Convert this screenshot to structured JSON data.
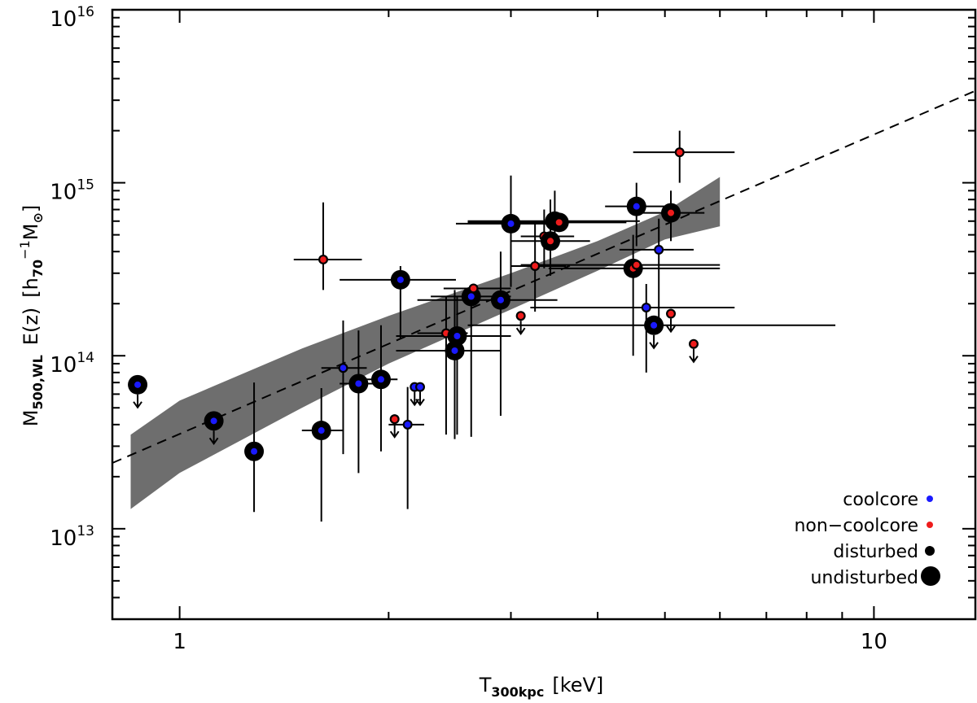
{
  "chart_data": {
    "type": "scatter",
    "xscale": "log",
    "yscale": "log",
    "xlim": [
      0.8,
      14.0
    ],
    "ylim": [
      3000000000000.0,
      1e+16
    ],
    "xlabel": {
      "base": "T",
      "sub": "300kpc",
      "rest": "[keV]"
    },
    "ylabel": {
      "base": "M",
      "sub": "500,WL",
      "mid": "E(z)",
      "bracket_open": "[",
      "h": "h",
      "h_sub": "70",
      "h_sup": "−1",
      "msun": "M",
      "msun_sub": "⊙",
      "bracket_close": "]"
    },
    "x_tick_labels": [
      {
        "value": 1,
        "label": "1"
      },
      {
        "value": 10,
        "label": "10"
      }
    ],
    "y_tick_labels": [
      {
        "value": 10000000000000.0,
        "base": "10",
        "exp": "13"
      },
      {
        "value": 100000000000000.0,
        "base": "10",
        "exp": "14"
      },
      {
        "value": 1000000000000000.0,
        "base": "10",
        "exp": "15"
      },
      {
        "value": 1e+16,
        "base": "10",
        "exp": "16"
      }
    ],
    "colors": {
      "coolcore": "#1a1aff",
      "noncoolcore": "#ee1c1c",
      "marker_ring": "#000000",
      "band": "#6e6e6e",
      "line": "#000000"
    },
    "fit_line": {
      "style": "dashed",
      "points": [
        [
          0.8,
          24000000000000.0
        ],
        [
          14.0,
          3400000000000000.0
        ]
      ]
    },
    "band": {
      "upper": [
        [
          0.85,
          35000000000000.0
        ],
        [
          1.0,
          55000000000000.0
        ],
        [
          1.5,
          110000000000000.0
        ],
        [
          2.0,
          170000000000000.0
        ],
        [
          3.0,
          300000000000000.0
        ],
        [
          4.0,
          460000000000000.0
        ],
        [
          5.0,
          680000000000000.0
        ],
        [
          6.0,
          1080000000000000.0
        ]
      ],
      "lower": [
        [
          0.85,
          13000000000000.0
        ],
        [
          1.0,
          21000000000000.0
        ],
        [
          1.5,
          50000000000000.0
        ],
        [
          2.0,
          90000000000000.0
        ],
        [
          3.0,
          185000000000000.0
        ],
        [
          4.0,
          310000000000000.0
        ],
        [
          5.0,
          470000000000000.0
        ],
        [
          6.0,
          560000000000000.0
        ]
      ]
    },
    "points": [
      {
        "t": 0.87,
        "m": 68000000000000.0,
        "core": "cc",
        "state": "undisturbed",
        "upper_limit": true
      },
      {
        "t": 1.12,
        "m": 42000000000000.0,
        "core": "cc",
        "state": "undisturbed",
        "upper_limit": true
      },
      {
        "t": 1.28,
        "m": 28000000000000.0,
        "core": "cc",
        "state": "undisturbed",
        "yerr": [
          12500000000000.0,
          70000000000000.0
        ]
      },
      {
        "t": 1.6,
        "m": 37000000000000.0,
        "core": "cc",
        "state": "undisturbed",
        "xerr": [
          1.5,
          1.72
        ],
        "yerr": [
          11000000000000.0,
          65000000000000.0
        ]
      },
      {
        "t": 1.61,
        "m": 360000000000000.0,
        "core": "ncc",
        "state": "disturbed",
        "xerr": [
          1.46,
          1.83
        ],
        "yerr": [
          240000000000000.0,
          770000000000000.0
        ]
      },
      {
        "t": 1.72,
        "m": 85000000000000.0,
        "core": "cc",
        "state": "disturbed",
        "xerr": [
          1.6,
          1.86
        ],
        "yerr": [
          27000000000000.0,
          160000000000000.0
        ]
      },
      {
        "t": 1.81,
        "m": 69000000000000.0,
        "core": "cc",
        "state": "undisturbed",
        "xerr": [
          1.7,
          1.96
        ],
        "yerr": [
          21000000000000.0,
          140000000000000.0
        ]
      },
      {
        "t": 1.95,
        "m": 73000000000000.0,
        "core": "cc",
        "state": "undisturbed",
        "xerr": [
          1.85,
          2.06
        ],
        "yerr": [
          28000000000000.0,
          150000000000000.0
        ]
      },
      {
        "t": 2.08,
        "m": 275000000000000.0,
        "core": "cc",
        "state": "undisturbed",
        "xerr": [
          1.7,
          2.5
        ],
        "yerr": [
          125000000000000.0,
          330000000000000.0
        ]
      },
      {
        "t": 2.04,
        "m": 43000000000000.0,
        "core": "ncc",
        "state": "disturbed",
        "upper_limit": true
      },
      {
        "t": 2.13,
        "m": 40000000000000.0,
        "core": "cc",
        "state": "disturbed",
        "xerr": [
          2.0,
          2.25
        ],
        "yerr": [
          13000000000000.0,
          66000000000000.0
        ]
      },
      {
        "t": 2.18,
        "m": 66000000000000.0,
        "core": "cc",
        "state": "disturbed",
        "upper_limit": true
      },
      {
        "t": 2.22,
        "m": 66000000000000.0,
        "core": "cc",
        "state": "disturbed",
        "upper_limit": true
      },
      {
        "t": 2.42,
        "m": 135000000000000.0,
        "core": "ncc",
        "state": "disturbed",
        "xerr": [
          2.2,
          2.6
        ],
        "yerr": [
          35000000000000.0,
          220000000000000.0
        ]
      },
      {
        "t": 2.49,
        "m": 107000000000000.0,
        "core": "cc",
        "state": "undisturbed",
        "xerr": [
          2.05,
          2.9
        ],
        "yerr": [
          33000000000000.0,
          240000000000000.0
        ]
      },
      {
        "t": 2.51,
        "m": 130000000000000.0,
        "core": "cc",
        "state": "undisturbed",
        "xerr": [
          2.05,
          3.0
        ],
        "yerr": [
          35000000000000.0,
          220000000000000.0
        ]
      },
      {
        "t": 2.63,
        "m": 220000000000000.0,
        "core": "cc",
        "state": "undisturbed",
        "xerr": [
          2.3,
          3.0
        ],
        "yerr": [
          34000000000000.0,
          240000000000000.0
        ]
      },
      {
        "t": 2.65,
        "m": 245000000000000.0,
        "core": "ncc",
        "state": "disturbed",
        "xerr": [
          2.4,
          3.0
        ]
      },
      {
        "t": 2.9,
        "m": 210000000000000.0,
        "core": "cc",
        "state": "undisturbed",
        "xerr": [
          2.2,
          3.5
        ],
        "yerr": [
          45000000000000.0,
          400000000000000.0
        ]
      },
      {
        "t": 3.0,
        "m": 580000000000000.0,
        "core": "cc",
        "state": "undisturbed",
        "xerr": [
          2.5,
          3.4
        ],
        "yerr": [
          250000000000000.0,
          1100000000000000.0
        ]
      },
      {
        "t": 3.1,
        "m": 170000000000000.0,
        "core": "ncc",
        "state": "disturbed",
        "upper_limit": true
      },
      {
        "t": 3.25,
        "m": 330000000000000.0,
        "core": "ncc",
        "state": "disturbed",
        "xerr": [
          3.0,
          3.6
        ],
        "yerr": [
          180000000000000.0,
          580000000000000.0
        ]
      },
      {
        "t": 3.35,
        "m": 490000000000000.0,
        "core": "ncc",
        "state": "disturbed",
        "xerr": [
          3.1,
          3.7
        ],
        "yerr": [
          320000000000000.0,
          700000000000000.0
        ]
      },
      {
        "t": 3.42,
        "m": 460000000000000.0,
        "core": "ncc",
        "state": "undisturbed",
        "xerr": [
          3.0,
          3.9
        ],
        "yerr": [
          290000000000000.0,
          800000000000000.0
        ]
      },
      {
        "t": 3.47,
        "m": 600000000000000.0,
        "core": "cc",
        "state": "undisturbed",
        "xerr": [
          2.6,
          4.6
        ],
        "yerr": [
          410000000000000.0,
          900000000000000.0
        ]
      },
      {
        "t": 3.52,
        "m": 590000000000000.0,
        "core": "ncc",
        "state": "undisturbed",
        "xerr": [
          2.6,
          4.4
        ]
      },
      {
        "t": 4.55,
        "m": 730000000000000.0,
        "core": "cc",
        "state": "undisturbed",
        "xerr": [
          4.1,
          5.2
        ],
        "yerr": [
          430000000000000.0,
          1000000000000000.0
        ]
      },
      {
        "t": 4.5,
        "m": 320000000000000.0,
        "core": "ncc",
        "state": "undisturbed",
        "xerr": [
          3.4,
          6.0
        ],
        "yerr": [
          100000000000000.0,
          500000000000000.0
        ]
      },
      {
        "t": 4.55,
        "m": 335000000000000.0,
        "core": "ncc",
        "state": "disturbed",
        "xerr": [
          3.1,
          6.0
        ]
      },
      {
        "t": 4.7,
        "m": 190000000000000.0,
        "core": "cc",
        "state": "disturbed",
        "xerr": [
          3.2,
          6.3
        ],
        "yerr": [
          80000000000000.0,
          260000000000000.0
        ]
      },
      {
        "t": 4.75,
        "m": 150000000000000.0,
        "core": "ncc",
        "state": "disturbed",
        "xerr": [
          2.6,
          8.8
        ]
      },
      {
        "t": 4.82,
        "m": 150000000000000.0,
        "core": "cc",
        "state": "undisturbed",
        "upper_limit": true
      },
      {
        "t": 4.9,
        "m": 410000000000000.0,
        "core": "cc",
        "state": "disturbed",
        "xerr": [
          4.3,
          5.5
        ],
        "yerr": [
          150000000000000.0,
          620000000000000.0
        ]
      },
      {
        "t": 5.1,
        "m": 175000000000000.0,
        "core": "ncc",
        "state": "disturbed",
        "upper_limit": true
      },
      {
        "t": 5.1,
        "m": 670000000000000.0,
        "core": "ncc",
        "state": "undisturbed",
        "xerr": [
          4.5,
          5.7
        ],
        "yerr": [
          460000000000000.0,
          900000000000000.0
        ]
      },
      {
        "t": 5.25,
        "m": 1500000000000000.0,
        "core": "ncc",
        "state": "disturbed",
        "xerr": [
          4.5,
          6.3
        ],
        "yerr": [
          1000000000000000.0,
          2000000000000000.0
        ]
      },
      {
        "t": 5.5,
        "m": 117000000000000.0,
        "core": "ncc",
        "state": "disturbed",
        "upper_limit": true
      }
    ],
    "legend": [
      {
        "label": "coolcore",
        "marker": "small",
        "color": "#1a1aff"
      },
      {
        "label": "non−coolcore",
        "marker": "small",
        "color": "#ee1c1c"
      },
      {
        "label": "disturbed",
        "marker": "small",
        "color": "#000000"
      },
      {
        "label": "undisturbed",
        "marker": "large",
        "color": "#000000"
      }
    ],
    "legend_position": "bottom-right"
  }
}
